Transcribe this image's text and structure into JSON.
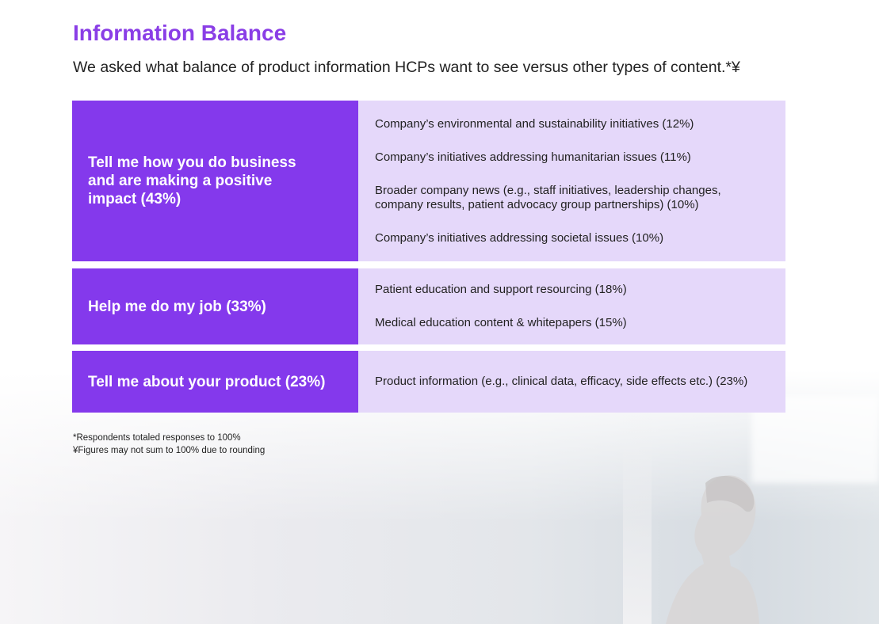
{
  "title": "Information Balance",
  "subtitle": "We asked what balance of product information HCPs want to see versus other types of content.*¥",
  "rows": [
    {
      "label": "Tell me how you do business and are making a positive impact (43%)",
      "items": [
        "Company’s environmental and sustainability initiatives (12%)",
        "Company’s initiatives addressing humanitarian issues (11%)",
        "Broader company news (e.g., staff initiatives, leadership changes, company results, patient advocacy group partnerships) (10%)",
        "Company’s initiatives addressing societal issues (10%)"
      ]
    },
    {
      "label": "Help me do my job (33%)",
      "items": [
        "Patient education and support resourcing (18%)",
        "Medical education content & whitepapers (15%)"
      ]
    },
    {
      "label": "Tell me about your product (23%)",
      "items": [
        "Product information (e.g., clinical data, efficacy, side effects etc.) (23%)"
      ]
    }
  ],
  "footnotes": [
    "*Respondents totaled responses to 100%",
    "¥Figures may not sum to 100% due to rounding"
  ],
  "colors": {
    "accent": "#8439ec",
    "light": "#e4d6fa",
    "title": "#8a3ee6"
  }
}
